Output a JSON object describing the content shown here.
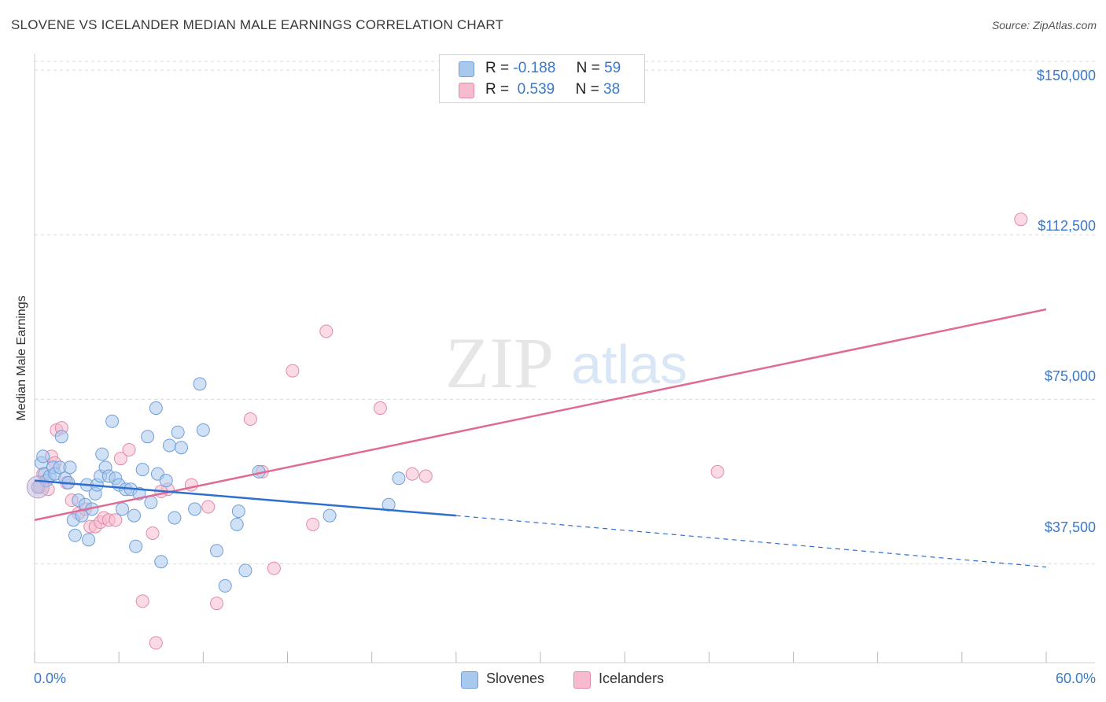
{
  "title": "SLOVENE VS ICELANDER MEDIAN MALE EARNINGS CORRELATION CHART",
  "source": "Source: ZipAtlas.com",
  "watermark": {
    "zip": "ZIP",
    "atlas": "atlas"
  },
  "legend": {
    "slovenes": {
      "r_label": "R =",
      "r_value": "-0.188",
      "n_label": "N =",
      "n_value": "59"
    },
    "icelanders": {
      "r_label": "R =",
      "r_value": "0.539",
      "n_label": "N =",
      "n_value": "38"
    }
  },
  "bottom_legend": {
    "slovenes": "Slovenes",
    "icelanders": "Icelanders"
  },
  "colors": {
    "blue_fill": "#a9c8ee",
    "blue_stroke": "#6f9fd8",
    "blue_line": "#2e6fcf",
    "pink_fill": "#f6bccd",
    "pink_stroke": "#e48aa8",
    "pink_line": "#e06a94",
    "tick_text": "#3b78c8",
    "grid": "#dcdcdc"
  },
  "chart_data": {
    "type": "scatter",
    "title": "SLOVENE VS ICELANDER MEDIAN MALE EARNINGS CORRELATION CHART",
    "xlabel": "",
    "ylabel": "Median Male Earnings",
    "xlim": [
      0,
      60
    ],
    "ylim": [
      15000,
      152000
    ],
    "x_tick_labels": [
      "0.0%",
      "60.0%"
    ],
    "y_ticks": [
      37500,
      75000,
      112500,
      150000
    ],
    "y_tick_labels": [
      "$37,500",
      "$75,000",
      "$112,500",
      "$150,000"
    ],
    "grid": true,
    "series": [
      {
        "name": "Slovenes",
        "r": -0.188,
        "n": 59,
        "points": [
          [
            0.2,
            55000
          ],
          [
            0.4,
            60500
          ],
          [
            0.5,
            62000
          ],
          [
            0.6,
            58000
          ],
          [
            0.7,
            56500
          ],
          [
            0.9,
            57500
          ],
          [
            1.1,
            59500
          ],
          [
            1.2,
            58000
          ],
          [
            1.5,
            59500
          ],
          [
            1.6,
            66500
          ],
          [
            1.8,
            57000
          ],
          [
            2.0,
            56000
          ],
          [
            2.1,
            59500
          ],
          [
            2.3,
            47500
          ],
          [
            2.4,
            44000
          ],
          [
            2.6,
            52000
          ],
          [
            2.8,
            48500
          ],
          [
            3.0,
            51000
          ],
          [
            3.1,
            55500
          ],
          [
            3.2,
            43000
          ],
          [
            3.4,
            50000
          ],
          [
            3.6,
            53500
          ],
          [
            3.7,
            55500
          ],
          [
            3.9,
            57500
          ],
          [
            4.0,
            62500
          ],
          [
            4.2,
            59500
          ],
          [
            4.4,
            57500
          ],
          [
            4.6,
            70000
          ],
          [
            4.8,
            57000
          ],
          [
            5.0,
            55500
          ],
          [
            5.2,
            50000
          ],
          [
            5.4,
            54500
          ],
          [
            5.7,
            54500
          ],
          [
            5.9,
            48500
          ],
          [
            6.0,
            41500
          ],
          [
            6.2,
            53500
          ],
          [
            6.4,
            59000
          ],
          [
            6.7,
            66500
          ],
          [
            6.9,
            51500
          ],
          [
            7.2,
            73000
          ],
          [
            7.3,
            58000
          ],
          [
            7.5,
            38000
          ],
          [
            7.8,
            56500
          ],
          [
            8.0,
            64500
          ],
          [
            8.3,
            48000
          ],
          [
            8.5,
            67500
          ],
          [
            8.7,
            64000
          ],
          [
            9.5,
            50000
          ],
          [
            9.8,
            78500
          ],
          [
            10.0,
            68000
          ],
          [
            10.8,
            40500
          ],
          [
            11.3,
            32500
          ],
          [
            12.0,
            46500
          ],
          [
            12.5,
            36000
          ],
          [
            13.3,
            58500
          ],
          [
            17.5,
            48500
          ],
          [
            21.0,
            51000
          ],
          [
            21.6,
            57000
          ],
          [
            12.1,
            49500
          ]
        ]
      },
      {
        "name": "Icelanders",
        "r": 0.539,
        "n": 38,
        "points": [
          [
            0.3,
            55000
          ],
          [
            0.5,
            58000
          ],
          [
            0.8,
            54500
          ],
          [
            1.0,
            62000
          ],
          [
            1.2,
            60500
          ],
          [
            1.3,
            68000
          ],
          [
            1.6,
            68500
          ],
          [
            1.9,
            56000
          ],
          [
            2.2,
            52000
          ],
          [
            2.6,
            49000
          ],
          [
            3.0,
            50000
          ],
          [
            3.3,
            46000
          ],
          [
            3.6,
            46000
          ],
          [
            3.9,
            47000
          ],
          [
            4.1,
            48000
          ],
          [
            4.4,
            47500
          ],
          [
            4.8,
            47500
          ],
          [
            5.1,
            61500
          ],
          [
            5.6,
            63500
          ],
          [
            6.4,
            29000
          ],
          [
            7.0,
            44500
          ],
          [
            7.2,
            19500
          ],
          [
            7.9,
            54500
          ],
          [
            9.3,
            55500
          ],
          [
            10.3,
            50500
          ],
          [
            10.8,
            28500
          ],
          [
            12.8,
            70500
          ],
          [
            13.5,
            58500
          ],
          [
            14.2,
            36500
          ],
          [
            15.3,
            81500
          ],
          [
            16.5,
            46500
          ],
          [
            17.3,
            90500
          ],
          [
            20.5,
            73000
          ],
          [
            22.4,
            58000
          ],
          [
            23.2,
            57500
          ],
          [
            40.5,
            58500
          ],
          [
            58.5,
            116000
          ],
          [
            7.5,
            54000
          ]
        ]
      }
    ],
    "trendlines": [
      {
        "series": "Slovenes",
        "solid_from": [
          0,
          56500
        ],
        "solid_to": [
          25,
          48500
        ],
        "dashed_to": [
          60,
          36800
        ]
      },
      {
        "series": "Icelanders",
        "from": [
          0,
          47500
        ],
        "to": [
          60,
          95500
        ]
      }
    ]
  }
}
